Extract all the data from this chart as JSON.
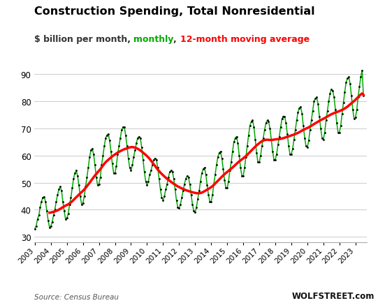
{
  "title": "Construction Spending, Total Nonresidential",
  "subtitle_prefix": "$ billion per month, ",
  "subtitle_monthly": "monthly",
  "subtitle_sep": ", ",
  "subtitle_ma": "12-month moving average",
  "source_text": "Source: Census Bureau",
  "watermark": "WOLFSTREET.com",
  "line_color_monthly": "#00AA00",
  "line_color_ma": "#FF0000",
  "dot_color": "#000000",
  "background_color": "#FFFFFF",
  "grid_color": "#CCCCCC",
  "title_color": "#000000",
  "ylim": [
    28,
    93
  ],
  "yticks": [
    30,
    40,
    50,
    60,
    70,
    80,
    90
  ],
  "monthly_values": [
    33.0,
    34.0,
    36.5,
    38.0,
    41.0,
    43.0,
    44.5,
    44.8,
    43.0,
    39.5,
    36.0,
    33.5,
    34.0,
    35.5,
    38.0,
    40.0,
    43.0,
    45.5,
    47.5,
    48.5,
    47.0,
    43.0,
    39.5,
    36.5,
    37.0,
    38.5,
    42.0,
    44.5,
    48.0,
    51.5,
    53.5,
    54.5,
    52.5,
    49.0,
    45.0,
    42.0,
    42.5,
    45.0,
    48.5,
    52.0,
    55.5,
    59.5,
    62.0,
    62.5,
    60.5,
    56.5,
    52.0,
    49.0,
    49.5,
    52.0,
    56.5,
    60.0,
    63.5,
    66.5,
    67.5,
    68.0,
    65.5,
    61.5,
    57.0,
    53.5,
    53.5,
    56.0,
    60.5,
    63.5,
    66.5,
    69.5,
    70.5,
    70.5,
    67.5,
    63.5,
    59.0,
    55.5,
    54.5,
    56.5,
    59.5,
    62.0,
    64.5,
    66.5,
    67.0,
    66.5,
    63.0,
    58.5,
    54.0,
    50.5,
    49.0,
    50.5,
    53.0,
    54.5,
    56.5,
    58.5,
    59.0,
    58.5,
    55.5,
    51.5,
    47.5,
    44.5,
    43.5,
    45.0,
    47.5,
    49.5,
    52.0,
    54.0,
    54.5,
    54.0,
    51.5,
    47.5,
    43.5,
    41.0,
    40.5,
    42.0,
    44.5,
    47.0,
    49.5,
    51.5,
    52.5,
    52.0,
    49.5,
    45.5,
    42.0,
    39.5,
    39.0,
    41.0,
    44.0,
    47.0,
    50.5,
    53.5,
    55.0,
    55.5,
    53.0,
    49.0,
    45.5,
    43.0,
    43.0,
    45.5,
    49.5,
    53.0,
    56.5,
    59.5,
    61.0,
    61.5,
    59.0,
    55.0,
    51.0,
    48.0,
    48.0,
    50.5,
    54.5,
    57.5,
    61.5,
    65.0,
    66.5,
    67.0,
    64.5,
    60.0,
    55.5,
    52.5,
    52.5,
    55.5,
    59.5,
    63.5,
    67.5,
    71.0,
    72.5,
    73.0,
    70.5,
    66.0,
    61.0,
    57.5,
    57.5,
    60.0,
    63.5,
    66.5,
    69.5,
    72.0,
    73.0,
    72.5,
    70.0,
    66.0,
    61.5,
    58.5,
    58.5,
    60.5,
    64.0,
    67.0,
    70.5,
    73.5,
    74.5,
    74.5,
    72.0,
    68.0,
    63.5,
    60.5,
    60.5,
    62.5,
    66.0,
    69.5,
    73.0,
    76.0,
    77.5,
    78.0,
    75.5,
    71.0,
    66.5,
    63.5,
    63.0,
    65.5,
    69.5,
    73.0,
    76.5,
    80.0,
    81.0,
    81.5,
    79.0,
    74.5,
    70.0,
    66.5,
    66.0,
    68.5,
    73.0,
    76.5,
    80.0,
    83.0,
    84.5,
    84.0,
    81.5,
    77.0,
    72.0,
    68.5,
    68.5,
    71.0,
    75.5,
    79.5,
    83.5,
    87.0,
    88.5,
    89.0,
    86.5,
    82.0,
    77.0,
    73.5,
    74.0,
    77.0,
    81.5,
    85.5,
    89.0,
    91.5,
    82.0
  ],
  "start_year": 2003,
  "start_month": 1
}
